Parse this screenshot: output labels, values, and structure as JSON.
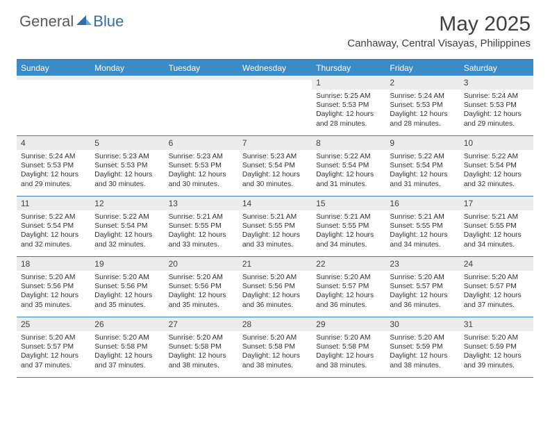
{
  "logo": {
    "general": "General",
    "blue": "Blue"
  },
  "title": "May 2025",
  "location": "Canhaway, Central Visayas, Philippines",
  "colors": {
    "header_bg": "#3b8bc9",
    "border": "#3b7fb8",
    "daynum_bg": "#ececec",
    "text": "#303030",
    "logo_gray": "#5a5a5a",
    "logo_blue": "#2f6fa8"
  },
  "dayNames": [
    "Sunday",
    "Monday",
    "Tuesday",
    "Wednesday",
    "Thursday",
    "Friday",
    "Saturday"
  ],
  "startOffset": 4,
  "days": [
    {
      "n": 1,
      "sr": "5:25 AM",
      "ss": "5:53 PM",
      "d": "12 hours and 28 minutes."
    },
    {
      "n": 2,
      "sr": "5:24 AM",
      "ss": "5:53 PM",
      "d": "12 hours and 28 minutes."
    },
    {
      "n": 3,
      "sr": "5:24 AM",
      "ss": "5:53 PM",
      "d": "12 hours and 29 minutes."
    },
    {
      "n": 4,
      "sr": "5:24 AM",
      "ss": "5:53 PM",
      "d": "12 hours and 29 minutes."
    },
    {
      "n": 5,
      "sr": "5:23 AM",
      "ss": "5:53 PM",
      "d": "12 hours and 30 minutes."
    },
    {
      "n": 6,
      "sr": "5:23 AM",
      "ss": "5:53 PM",
      "d": "12 hours and 30 minutes."
    },
    {
      "n": 7,
      "sr": "5:23 AM",
      "ss": "5:54 PM",
      "d": "12 hours and 30 minutes."
    },
    {
      "n": 8,
      "sr": "5:22 AM",
      "ss": "5:54 PM",
      "d": "12 hours and 31 minutes."
    },
    {
      "n": 9,
      "sr": "5:22 AM",
      "ss": "5:54 PM",
      "d": "12 hours and 31 minutes."
    },
    {
      "n": 10,
      "sr": "5:22 AM",
      "ss": "5:54 PM",
      "d": "12 hours and 32 minutes."
    },
    {
      "n": 11,
      "sr": "5:22 AM",
      "ss": "5:54 PM",
      "d": "12 hours and 32 minutes."
    },
    {
      "n": 12,
      "sr": "5:22 AM",
      "ss": "5:54 PM",
      "d": "12 hours and 32 minutes."
    },
    {
      "n": 13,
      "sr": "5:21 AM",
      "ss": "5:55 PM",
      "d": "12 hours and 33 minutes."
    },
    {
      "n": 14,
      "sr": "5:21 AM",
      "ss": "5:55 PM",
      "d": "12 hours and 33 minutes."
    },
    {
      "n": 15,
      "sr": "5:21 AM",
      "ss": "5:55 PM",
      "d": "12 hours and 34 minutes."
    },
    {
      "n": 16,
      "sr": "5:21 AM",
      "ss": "5:55 PM",
      "d": "12 hours and 34 minutes."
    },
    {
      "n": 17,
      "sr": "5:21 AM",
      "ss": "5:55 PM",
      "d": "12 hours and 34 minutes."
    },
    {
      "n": 18,
      "sr": "5:20 AM",
      "ss": "5:56 PM",
      "d": "12 hours and 35 minutes."
    },
    {
      "n": 19,
      "sr": "5:20 AM",
      "ss": "5:56 PM",
      "d": "12 hours and 35 minutes."
    },
    {
      "n": 20,
      "sr": "5:20 AM",
      "ss": "5:56 PM",
      "d": "12 hours and 35 minutes."
    },
    {
      "n": 21,
      "sr": "5:20 AM",
      "ss": "5:56 PM",
      "d": "12 hours and 36 minutes."
    },
    {
      "n": 22,
      "sr": "5:20 AM",
      "ss": "5:57 PM",
      "d": "12 hours and 36 minutes."
    },
    {
      "n": 23,
      "sr": "5:20 AM",
      "ss": "5:57 PM",
      "d": "12 hours and 36 minutes."
    },
    {
      "n": 24,
      "sr": "5:20 AM",
      "ss": "5:57 PM",
      "d": "12 hours and 37 minutes."
    },
    {
      "n": 25,
      "sr": "5:20 AM",
      "ss": "5:57 PM",
      "d": "12 hours and 37 minutes."
    },
    {
      "n": 26,
      "sr": "5:20 AM",
      "ss": "5:58 PM",
      "d": "12 hours and 37 minutes."
    },
    {
      "n": 27,
      "sr": "5:20 AM",
      "ss": "5:58 PM",
      "d": "12 hours and 38 minutes."
    },
    {
      "n": 28,
      "sr": "5:20 AM",
      "ss": "5:58 PM",
      "d": "12 hours and 38 minutes."
    },
    {
      "n": 29,
      "sr": "5:20 AM",
      "ss": "5:58 PM",
      "d": "12 hours and 38 minutes."
    },
    {
      "n": 30,
      "sr": "5:20 AM",
      "ss": "5:59 PM",
      "d": "12 hours and 38 minutes."
    },
    {
      "n": 31,
      "sr": "5:20 AM",
      "ss": "5:59 PM",
      "d": "12 hours and 39 minutes."
    }
  ],
  "labels": {
    "sunrise": "Sunrise:",
    "sunset": "Sunset:",
    "daylight": "Daylight:"
  }
}
